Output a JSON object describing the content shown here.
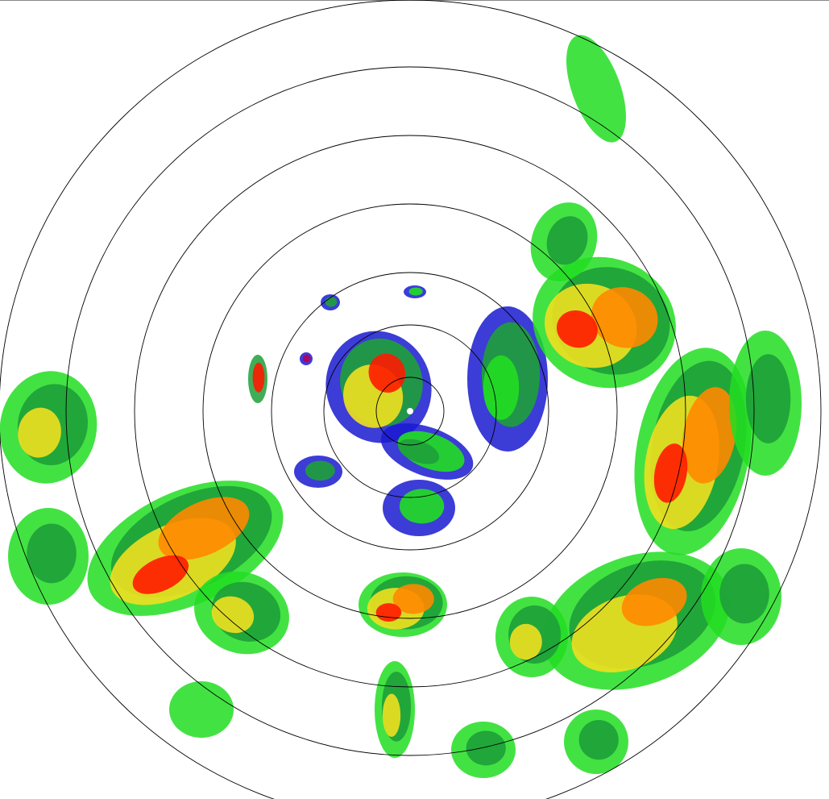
{
  "radar": {
    "type": "ppi-reflectivity",
    "range_rings": 7,
    "palette": {
      "weak": "#1a1ad0",
      "light": "#17c8a0",
      "moderate_light": "#22dd22",
      "moderate": "#1ea03a",
      "strong": "#f0e020",
      "heavy": "#ff8800",
      "intense": "#ff1a00",
      "extreme": "#b00060"
    },
    "ring_color": "#000000",
    "background": "#ffffff"
  }
}
